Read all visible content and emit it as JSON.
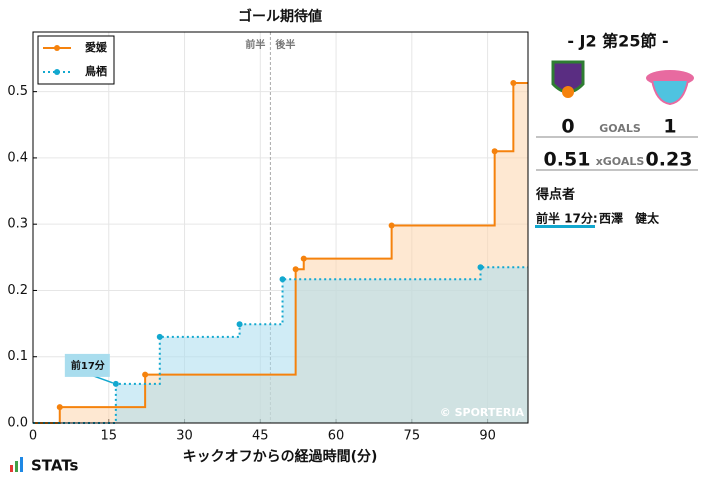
{
  "chart_data": {
    "type": "step",
    "title": "ゴール期待値",
    "x_label": "キックオフからの経過時間(分)",
    "xlim": [
      0,
      98
    ],
    "ylim": [
      0,
      0.59
    ],
    "xticks": [
      0,
      15,
      30,
      45,
      60,
      75,
      90
    ],
    "yticks": [
      {
        "value": 0,
        "label": "0.0"
      },
      0.1,
      0.2,
      0.3,
      0.4,
      0.5
    ],
    "grid": true,
    "legend": "upper left",
    "halftime": 47,
    "halves": [
      "前半",
      "後半"
    ],
    "series": [
      {
        "name": "愛媛",
        "color": "#f5820d",
        "fill": "#fdd5ad",
        "dash": false,
        "x": [
          5.3,
          22.2,
          52.0,
          53.6,
          71.0,
          91.4,
          95.1
        ],
        "values": [
          0.024,
          0.073,
          0.232,
          0.248,
          0.298,
          0.41,
          0.513
        ]
      },
      {
        "name": "鳥栖",
        "color": "#12a8cf",
        "fill": "#a9ddee",
        "dash": true,
        "x": [
          16.4,
          25.1,
          40.9,
          49.4,
          88.6
        ],
        "values": [
          0.059,
          0.13,
          0.149,
          0.217,
          0.235
        ]
      }
    ],
    "annotations": [
      {
        "text": "前17分"
      }
    ],
    "watermark": "© SPORTERIA"
  },
  "match": {
    "title": "-  J2 第25節  -",
    "home_goals": "0",
    "away_goals": "1",
    "goals_label": "GOALS",
    "home_xg": "0.51",
    "away_xg": "0.23",
    "xg_label": "xGOALS",
    "scorers_label": "得点者",
    "scorers": [
      {
        "time": "前半 17分:",
        "player": "西澤　健太"
      }
    ]
  },
  "brand": "STATs"
}
